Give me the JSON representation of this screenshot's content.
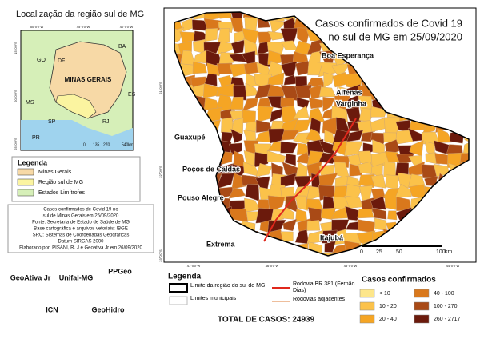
{
  "inset": {
    "title": "Localização da região sul de MG",
    "state_label": "MINAS GERAIS",
    "neighbors": [
      "GO",
      "DF",
      "BA",
      "MS",
      "SP",
      "RJ",
      "ES",
      "PR"
    ],
    "lon_labels": [
      "50°0'0\"W",
      "45°0'0\"W",
      "40°0'0\"W"
    ],
    "lat_labels": [
      "15°0'0\"S",
      "20°0'0\"S",
      "25°0'0\"S"
    ],
    "scale_labels": [
      "0",
      "135",
      "270",
      "540",
      "km"
    ],
    "legend_title": "Legenda",
    "legend_items": [
      "Minas Gerais",
      "Região sul de MG",
      "Estados Limítrofes"
    ]
  },
  "info": [
    "Casos confirmados de Covid 19 no",
    "sul de Minas Gerais em 25/09/2020",
    "Fonte: Secretaria de Estado de Saúde de MG",
    "Base cartográfica e arquivos vetoriais: IBGE",
    "SRC: Sistemas de Coordenadas Geográficas",
    "Datum SIRGAS 2000",
    "Elaborado por: PISANI, R. J e Geoativa Jr em 26/09/2020"
  ],
  "logos": [
    "GeoAtiva Jr",
    "Unifal-MG",
    "PPGeo",
    "ICN",
    "GeoHidro"
  ],
  "map": {
    "title": [
      "Casos confirmados de Covid 19",
      "no sul de MG em 25/09/2020"
    ],
    "cities": [
      "Boa Esperança",
      "Alfenas",
      "Varginha",
      "Guaxupé",
      "Poços de Caldas",
      "Pouso Alegre",
      "Extrema",
      "Itajubá"
    ],
    "lon_labels": [
      "47°0'0\"W",
      "46°0'0\"W",
      "45°0'0\"W",
      "44°0'0\"W"
    ],
    "lat_labels": [
      "21°0'0\"S",
      "22°0'0\"S",
      "23°0'0\"S"
    ],
    "scale_labels": [
      "0",
      "25",
      "50",
      "100",
      "km"
    ]
  },
  "legend": {
    "title": "Legenda",
    "items": [
      "Limite da região do sul de MG",
      "Limites municipais",
      "Rodovia BR 381 (Fernão Dias)",
      "Rodovias adjacentes"
    ],
    "total": "TOTAL DE CASOS: 24939",
    "classes_title": "Casos confirmados",
    "classes": [
      {
        "label": "< 10",
        "color": "#fde68a"
      },
      {
        "label": "10 - 20",
        "color": "#fbc24a"
      },
      {
        "label": "20 - 40",
        "color": "#f5a524"
      },
      {
        "label": "40 - 100",
        "color": "#d9781c"
      },
      {
        "label": "100 - 270",
        "color": "#a94a16"
      },
      {
        "label": "260 - 2717",
        "color": "#6b1a0c"
      }
    ]
  }
}
